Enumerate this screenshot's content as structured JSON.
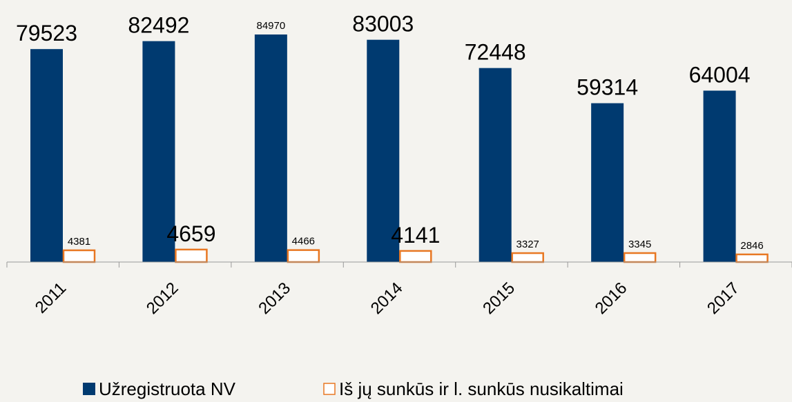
{
  "chart_data": {
    "type": "bar",
    "categories": [
      "2011",
      "2012",
      "2013",
      "2014",
      "2015",
      "2016",
      "2017"
    ],
    "series": [
      {
        "name": "Užregistruota NV",
        "color": "#003a70",
        "values": [
          79523,
          82492,
          84970,
          83003,
          72448,
          59314,
          64004
        ]
      },
      {
        "name": "Iš jų sunkūs ir l. sunkūs nusikaltimai",
        "color": "#e87722",
        "values": [
          4381,
          4659,
          4466,
          4141,
          3327,
          3345,
          2846
        ]
      }
    ],
    "ylim": [
      0,
      90000
    ]
  }
}
